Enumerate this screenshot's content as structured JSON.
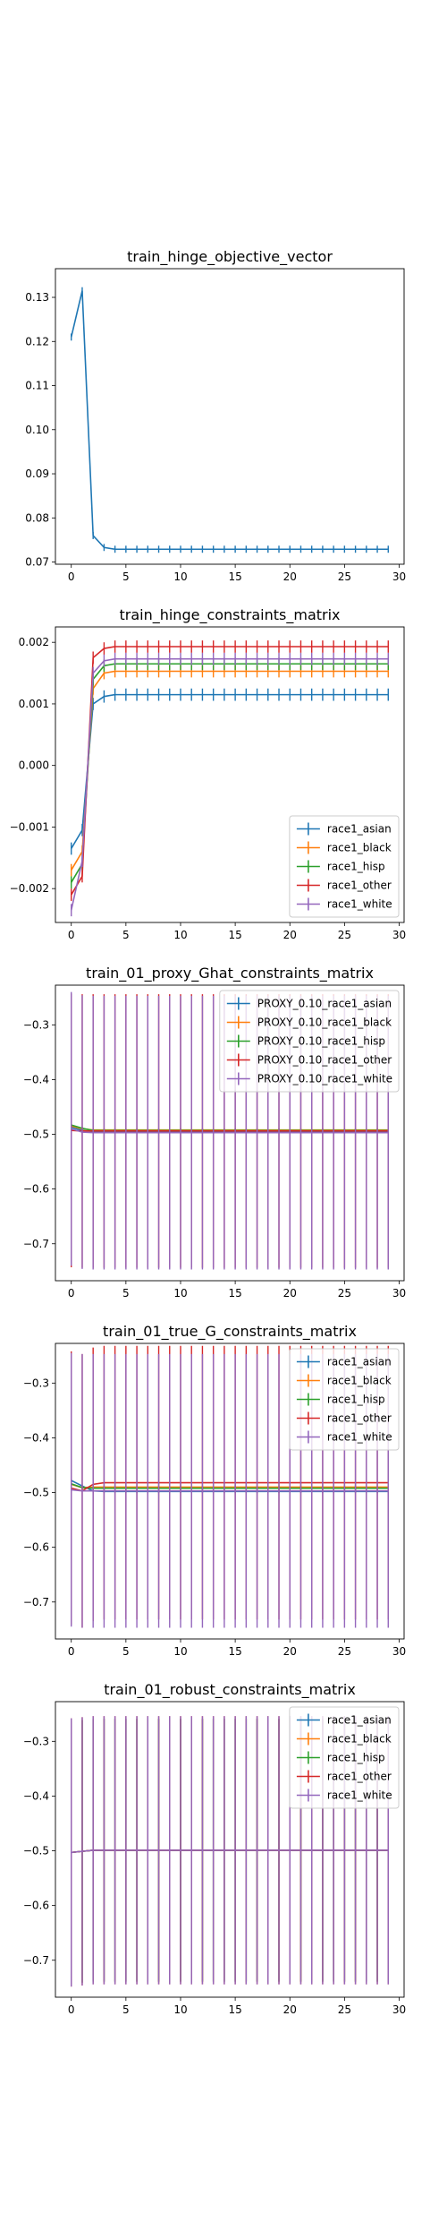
{
  "chart_data": [
    {
      "type": "line",
      "title": "train_hinge_objective_vector",
      "x": [
        0,
        1,
        2,
        3,
        4,
        5,
        6,
        7,
        8,
        9,
        10,
        11,
        12,
        13,
        14,
        15,
        16,
        17,
        18,
        19,
        20,
        21,
        22,
        23,
        24,
        25,
        26,
        27,
        28,
        29
      ],
      "xticks": [
        0,
        5,
        10,
        15,
        20,
        25,
        30
      ],
      "xlim": [
        -1.45,
        30.45
      ],
      "ylim": [
        0.0695,
        0.1365
      ],
      "yticks": [
        0.07,
        0.08,
        0.09,
        0.1,
        0.11,
        0.12,
        0.13
      ],
      "ytick_labels": [
        "0.07",
        "0.08",
        "0.09",
        "0.10",
        "0.11",
        "0.12",
        "0.13"
      ],
      "legend": null,
      "series": [
        {
          "color": "#1f77b4",
          "err": 0.0008,
          "values": [
            0.121,
            0.1315,
            0.076,
            0.0733,
            0.0729,
            0.0729,
            0.0729,
            0.0729,
            0.0729,
            0.0729,
            0.0729,
            0.0729,
            0.0729,
            0.0729,
            0.0729,
            0.0729,
            0.0729,
            0.0729,
            0.0729,
            0.0729,
            0.0729,
            0.0729,
            0.0729,
            0.0729,
            0.0729,
            0.0729,
            0.0729,
            0.0729,
            0.0729,
            0.0729
          ]
        }
      ]
    },
    {
      "type": "line",
      "title": "train_hinge_constraints_matrix",
      "x": [
        0,
        1,
        2,
        3,
        4,
        5,
        6,
        7,
        8,
        9,
        10,
        11,
        12,
        13,
        14,
        15,
        16,
        17,
        18,
        19,
        20,
        21,
        22,
        23,
        24,
        25,
        26,
        27,
        28,
        29
      ],
      "xticks": [
        0,
        5,
        10,
        15,
        20,
        25,
        30
      ],
      "xlim": [
        -1.45,
        30.45
      ],
      "ylim": [
        -0.00255,
        0.00225
      ],
      "yticks": [
        -0.002,
        -0.001,
        0.0,
        0.001,
        0.002
      ],
      "ytick_labels": [
        "−0.002",
        "−0.001",
        "0.000",
        "0.001",
        "0.002"
      ],
      "legend": "lower-right",
      "series": [
        {
          "name": "race1_asian",
          "color": "#1f77b4",
          "err": 0.0001,
          "start": [
            -0.00135,
            -0.00105,
            0.001,
            0.00112
          ],
          "plateau": 0.00115
        },
        {
          "name": "race1_black",
          "color": "#ff7f0e",
          "err": 0.0001,
          "start": [
            -0.0017,
            -0.0014,
            0.00125,
            0.0015
          ],
          "plateau": 0.00153
        },
        {
          "name": "race1_hisp",
          "color": "#2ca02c",
          "err": 0.0001,
          "start": [
            -0.0019,
            -0.0016,
            0.0014,
            0.00162
          ],
          "plateau": 0.00165
        },
        {
          "name": "race1_other",
          "color": "#d62728",
          "err": 0.0001,
          "start": [
            -0.0021,
            -0.0018,
            0.00175,
            0.0019
          ],
          "plateau": 0.00193
        },
        {
          "name": "race1_white",
          "color": "#9467bd",
          "err": 0.0001,
          "start": [
            -0.00235,
            -0.00155,
            0.0015,
            0.0017
          ],
          "plateau": 0.00173
        }
      ]
    },
    {
      "type": "line",
      "title": "train_01_proxy_Ghat_constraints_matrix",
      "x": [
        0,
        1,
        2,
        3,
        4,
        5,
        6,
        7,
        8,
        9,
        10,
        11,
        12,
        13,
        14,
        15,
        16,
        17,
        18,
        19,
        20,
        21,
        22,
        23,
        24,
        25,
        26,
        27,
        28,
        29
      ],
      "xticks": [
        0,
        5,
        10,
        15,
        20,
        25,
        30
      ],
      "xlim": [
        -1.45,
        30.45
      ],
      "ylim": [
        -0.7675,
        -0.2275
      ],
      "yticks": [
        -0.7,
        -0.6,
        -0.5,
        -0.4,
        -0.3
      ],
      "ytick_labels": [
        "−0.7",
        "−0.6",
        "−0.5",
        "−0.4",
        "−0.3"
      ],
      "legend": "top-right",
      "series": [
        {
          "name": "PROXY_0.10_race1_asian",
          "color": "#1f77b4",
          "err": 0.003,
          "start": [
            -0.487,
            -0.493
          ],
          "plateau": -0.495
        },
        {
          "name": "PROXY_0.10_race1_black",
          "color": "#ff7f0e",
          "err": 0.003,
          "start": [
            -0.485,
            -0.49
          ],
          "plateau": -0.492
        },
        {
          "name": "PROXY_0.10_race1_hisp",
          "color": "#2ca02c",
          "err": 0.003,
          "start": [
            -0.483,
            -0.489
          ],
          "plateau": -0.493
        },
        {
          "name": "PROXY_0.10_race1_other",
          "color": "#d62728",
          "err": 0.25,
          "start": [
            -0.493,
            -0.494
          ],
          "plateau": -0.494
        },
        {
          "name": "PROXY_0.10_race1_white",
          "color": "#9467bd",
          "err": 0.25,
          "start": [
            -0.49,
            -0.496
          ],
          "plateau": -0.497
        }
      ]
    },
    {
      "type": "line",
      "title": "train_01_true_G_constraints_matrix",
      "x": [
        0,
        1,
        2,
        3,
        4,
        5,
        6,
        7,
        8,
        9,
        10,
        11,
        12,
        13,
        14,
        15,
        16,
        17,
        18,
        19,
        20,
        21,
        22,
        23,
        24,
        25,
        26,
        27,
        28,
        29
      ],
      "xticks": [
        0,
        5,
        10,
        15,
        20,
        25,
        30
      ],
      "xlim": [
        -1.45,
        30.45
      ],
      "ylim": [
        -0.7675,
        -0.2275
      ],
      "yticks": [
        -0.7,
        -0.6,
        -0.5,
        -0.4,
        -0.3
      ],
      "ytick_labels": [
        "−0.7",
        "−0.6",
        "−0.5",
        "−0.4",
        "−0.3"
      ],
      "legend": "top-right",
      "series": [
        {
          "name": "race1_asian",
          "color": "#1f77b4",
          "err": 0.003,
          "start": [
            -0.478,
            -0.488,
            -0.497
          ],
          "plateau": -0.498
        },
        {
          "name": "race1_black",
          "color": "#ff7f0e",
          "err": 0.003,
          "start": [
            -0.485,
            -0.491,
            -0.49
          ],
          "plateau": -0.49
        },
        {
          "name": "race1_hisp",
          "color": "#2ca02c",
          "err": 0.003,
          "start": [
            -0.484,
            -0.491,
            -0.492
          ],
          "plateau": -0.492
        },
        {
          "name": "race1_other",
          "color": "#d62728",
          "err": 0.25,
          "start": [
            -0.492,
            -0.497,
            -0.485
          ],
          "plateau": -0.482
        },
        {
          "name": "race1_white",
          "color": "#9467bd",
          "err": 0.25,
          "start": [
            -0.495,
            -0.497,
            -0.497
          ],
          "plateau": -0.497
        }
      ]
    },
    {
      "type": "line",
      "title": "train_01_robust_constraints_matrix",
      "x": [
        0,
        1,
        2,
        3,
        4,
        5,
        6,
        7,
        8,
        9,
        10,
        11,
        12,
        13,
        14,
        15,
        16,
        17,
        18,
        19,
        20,
        21,
        22,
        23,
        24,
        25,
        26,
        27,
        28,
        29
      ],
      "xticks": [
        0,
        5,
        10,
        15,
        20,
        25,
        30
      ],
      "xlim": [
        -1.45,
        30.45
      ],
      "ylim": [
        -0.7675,
        -0.2275
      ],
      "yticks": [
        -0.7,
        -0.6,
        -0.5,
        -0.4,
        -0.3
      ],
      "ytick_labels": [
        "−0.7",
        "−0.6",
        "−0.5",
        "−0.4",
        "−0.3"
      ],
      "legend": "top-right",
      "series": [
        {
          "name": "race1_asian",
          "color": "#1f77b4",
          "err": 0.24,
          "start": [
            -0.503,
            -0.501
          ],
          "plateau": -0.499
        },
        {
          "name": "race1_black",
          "color": "#ff7f0e",
          "err": 0.24,
          "start": [
            -0.503,
            -0.501
          ],
          "plateau": -0.499
        },
        {
          "name": "race1_hisp",
          "color": "#2ca02c",
          "err": 0.24,
          "start": [
            -0.503,
            -0.501
          ],
          "plateau": -0.499
        },
        {
          "name": "race1_other",
          "color": "#d62728",
          "err": 0.245,
          "start": [
            -0.503,
            -0.501
          ],
          "plateau": -0.499
        },
        {
          "name": "race1_white",
          "color": "#9467bd",
          "err": 0.245,
          "start": [
            -0.503,
            -0.501
          ],
          "plateau": -0.499
        }
      ]
    }
  ]
}
